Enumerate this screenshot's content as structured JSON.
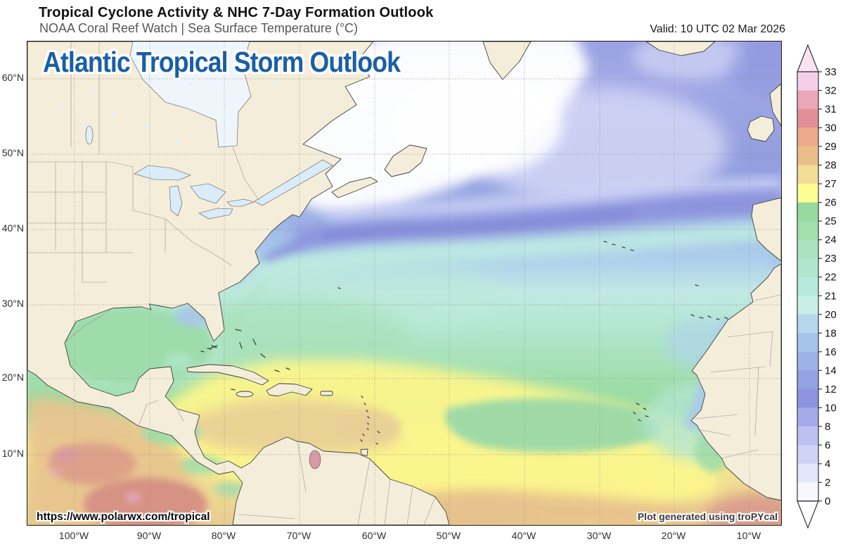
{
  "header": {
    "title": "Tropical Cyclone Activity & NHC 7-Day Formation Outlook",
    "subtitle": "NOAA Coral Reef Watch | Sea Surface Temperature (°C)",
    "valid_label": "Valid: 10 UTC 02 Mar 2026"
  },
  "overlay": {
    "headline": "Atlantic Tropical Storm Outlook",
    "headline_color": "#1a5fa5",
    "watermark_url": "https://www.polarwx.com/tropical",
    "credit": "Plot generated using troPYcal"
  },
  "axes": {
    "lat_labels": [
      "60°N",
      "50°N",
      "40°N",
      "30°N",
      "20°N",
      "10°N"
    ],
    "lon_labels": [
      "100°W",
      "90°W",
      "80°W",
      "70°W",
      "60°W",
      "50°W",
      "40°W",
      "30°W",
      "20°W",
      "10°W"
    ]
  },
  "colorbar": {
    "tick_labels": [
      "33",
      "32",
      "31",
      "30",
      "29",
      "28",
      "27",
      "26",
      "25",
      "24",
      "23",
      "22",
      "21",
      "20",
      "18",
      "16",
      "14",
      "12",
      "10",
      "8",
      "6",
      "4",
      "2",
      "0"
    ],
    "band_colors_top_to_bottom": [
      "#f5cfe8",
      "#eaa7b6",
      "#e18f96",
      "#ecab8c",
      "#ebbe89",
      "#f2dc96",
      "#fdfd92",
      "#99d9a0",
      "#a4dfae",
      "#abe3c0",
      "#b0e6ce",
      "#b6e9da",
      "#c8efe7",
      "#b3d7ec",
      "#a6c3ea",
      "#9cb2e8",
      "#93a2e2",
      "#8e94de",
      "#a5abe8",
      "#bcc1f0",
      "#cfd4f6",
      "#e3e5fa",
      "#f7f7fd"
    ],
    "over_arrow_color": "#fbe3f3",
    "under_arrow_color": "#ffffff"
  }
}
